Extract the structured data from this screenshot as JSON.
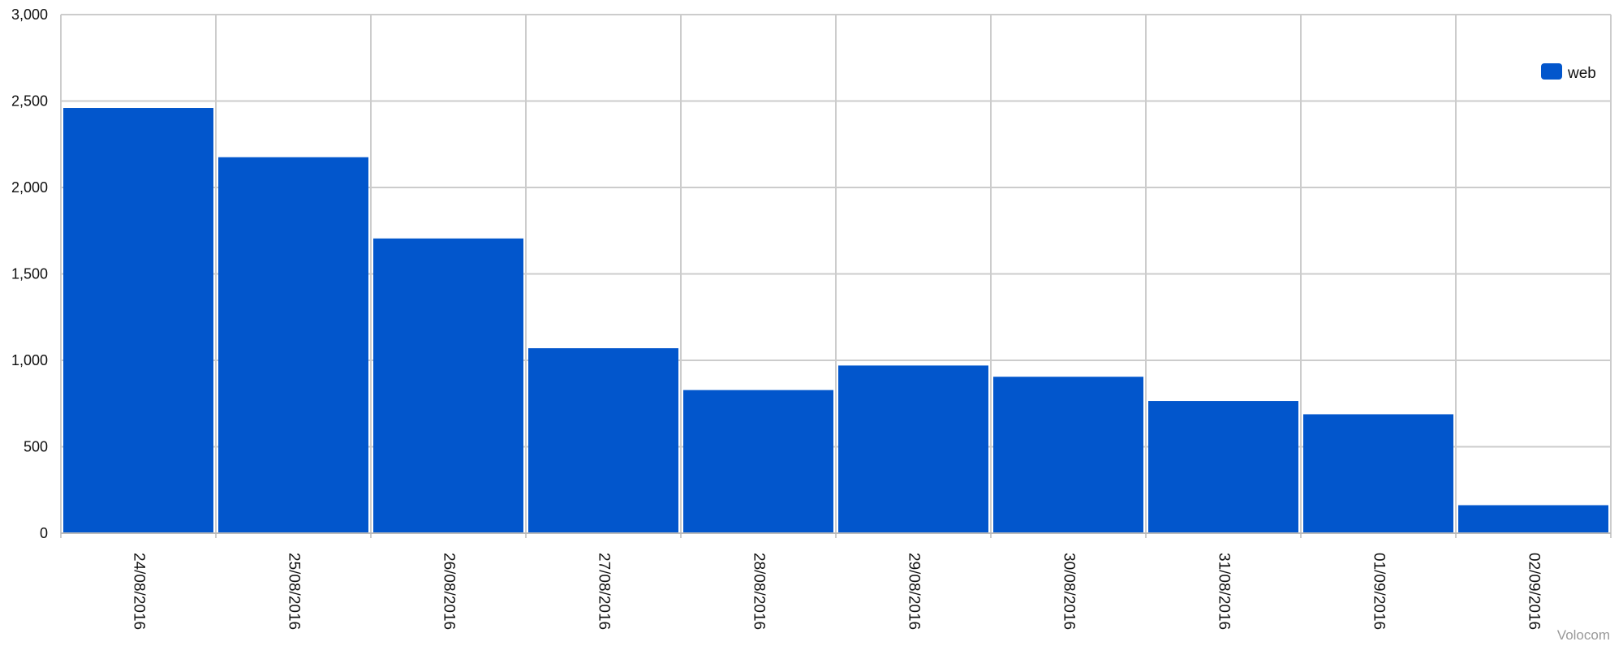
{
  "chart_data": {
    "type": "bar",
    "categories": [
      "24/08/2016",
      "25/08/2016",
      "26/08/2016",
      "27/08/2016",
      "28/08/2016",
      "29/08/2016",
      "30/08/2016",
      "31/08/2016",
      "01/09/2016",
      "02/09/2016"
    ],
    "series": [
      {
        "name": "web",
        "color": "#0256cc",
        "values": [
          2460,
          2175,
          1705,
          1070,
          828,
          970,
          905,
          765,
          688,
          162
        ]
      }
    ],
    "title": "",
    "xlabel": "",
    "ylabel": "",
    "ylim": [
      0,
      3000
    ],
    "yticks": [
      0,
      500,
      1000,
      1500,
      2000,
      2500,
      3000
    ],
    "ytick_labels": [
      "0",
      "500",
      "1,000",
      "1,500",
      "2,000",
      "2,500",
      "3,000"
    ],
    "grid": true,
    "legend_position": "top-right"
  },
  "credit": "Volocom",
  "colors": {
    "bar": "#0256cc",
    "grid": "#cccccc",
    "axis": "#bbbbbb",
    "credit": "#9a9a9a"
  }
}
